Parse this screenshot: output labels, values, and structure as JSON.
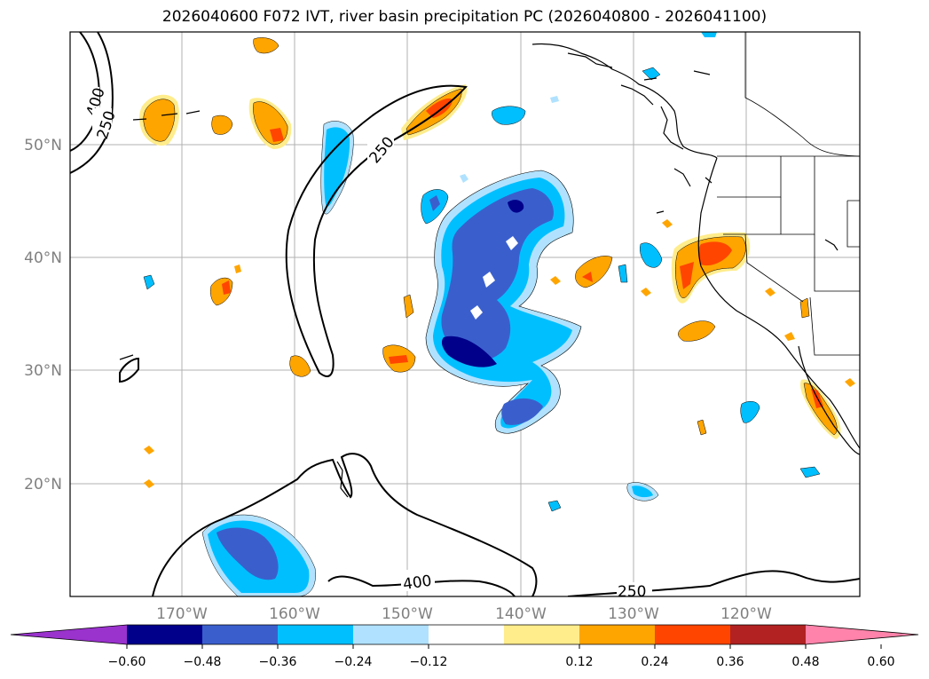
{
  "title": "2026040600 F072 IVT, river basin precipitation PC (2026040800 - 2026041100)",
  "map": {
    "lat_labels": [
      "50°N",
      "40°N",
      "30°N",
      "20°N"
    ],
    "lon_labels": [
      "170°W",
      "160°W",
      "150°W",
      "140°W",
      "130°W",
      "120°W"
    ],
    "contour_labels": [
      {
        "text": "400"
      },
      {
        "text": "250"
      },
      {
        "text": "250"
      },
      {
        "text": "400"
      },
      {
        "text": "250"
      }
    ]
  },
  "colorbar": {
    "colors": [
      "#9a32cd",
      "#00008b",
      "#3a5fcd",
      "#00bfff",
      "#b0e2ff",
      "#ffffff",
      "#ffec8b",
      "#ffa500",
      "#ff4500",
      "#b22222",
      "#ff83aa"
    ],
    "tick_labels": [
      "−0.60",
      "−0.48",
      "−0.36",
      "−0.24",
      "−0.12",
      "0.12",
      "0.24",
      "0.36",
      "0.48",
      "0.60"
    ]
  }
}
